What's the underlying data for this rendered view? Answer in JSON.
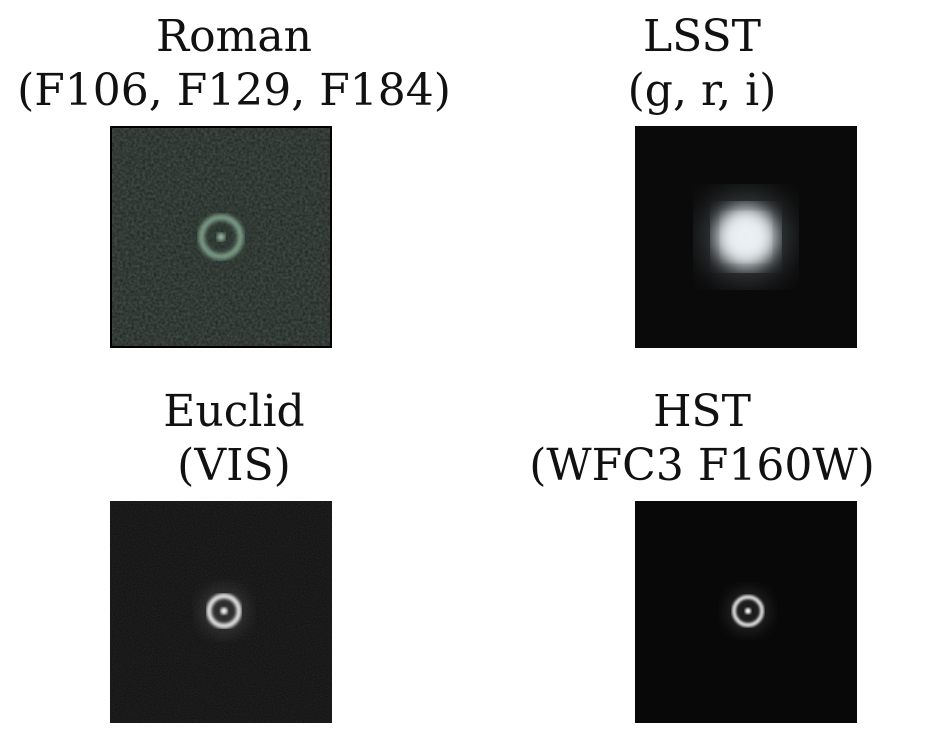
{
  "panels": [
    {
      "id": "roman",
      "title_line1": "Roman",
      "title_line2": "(F106, F129, F184)",
      "background": "#1c221f",
      "ring_color": "#8fb59a"
    },
    {
      "id": "lsst",
      "title_line1": "LSST",
      "title_line2": "(g, r, i)",
      "background": "#0a0a0a",
      "ring_color": "#dfe7ec"
    },
    {
      "id": "euclid",
      "title_line1": "Euclid",
      "title_line2": "(VIS)",
      "background": "#0b0b0b",
      "ring_color": "#e6e6e6"
    },
    {
      "id": "hst",
      "title_line1": "HST",
      "title_line2": "(WFC3 F160W)",
      "background": "#080808",
      "ring_color": "#e0e0e0"
    }
  ]
}
